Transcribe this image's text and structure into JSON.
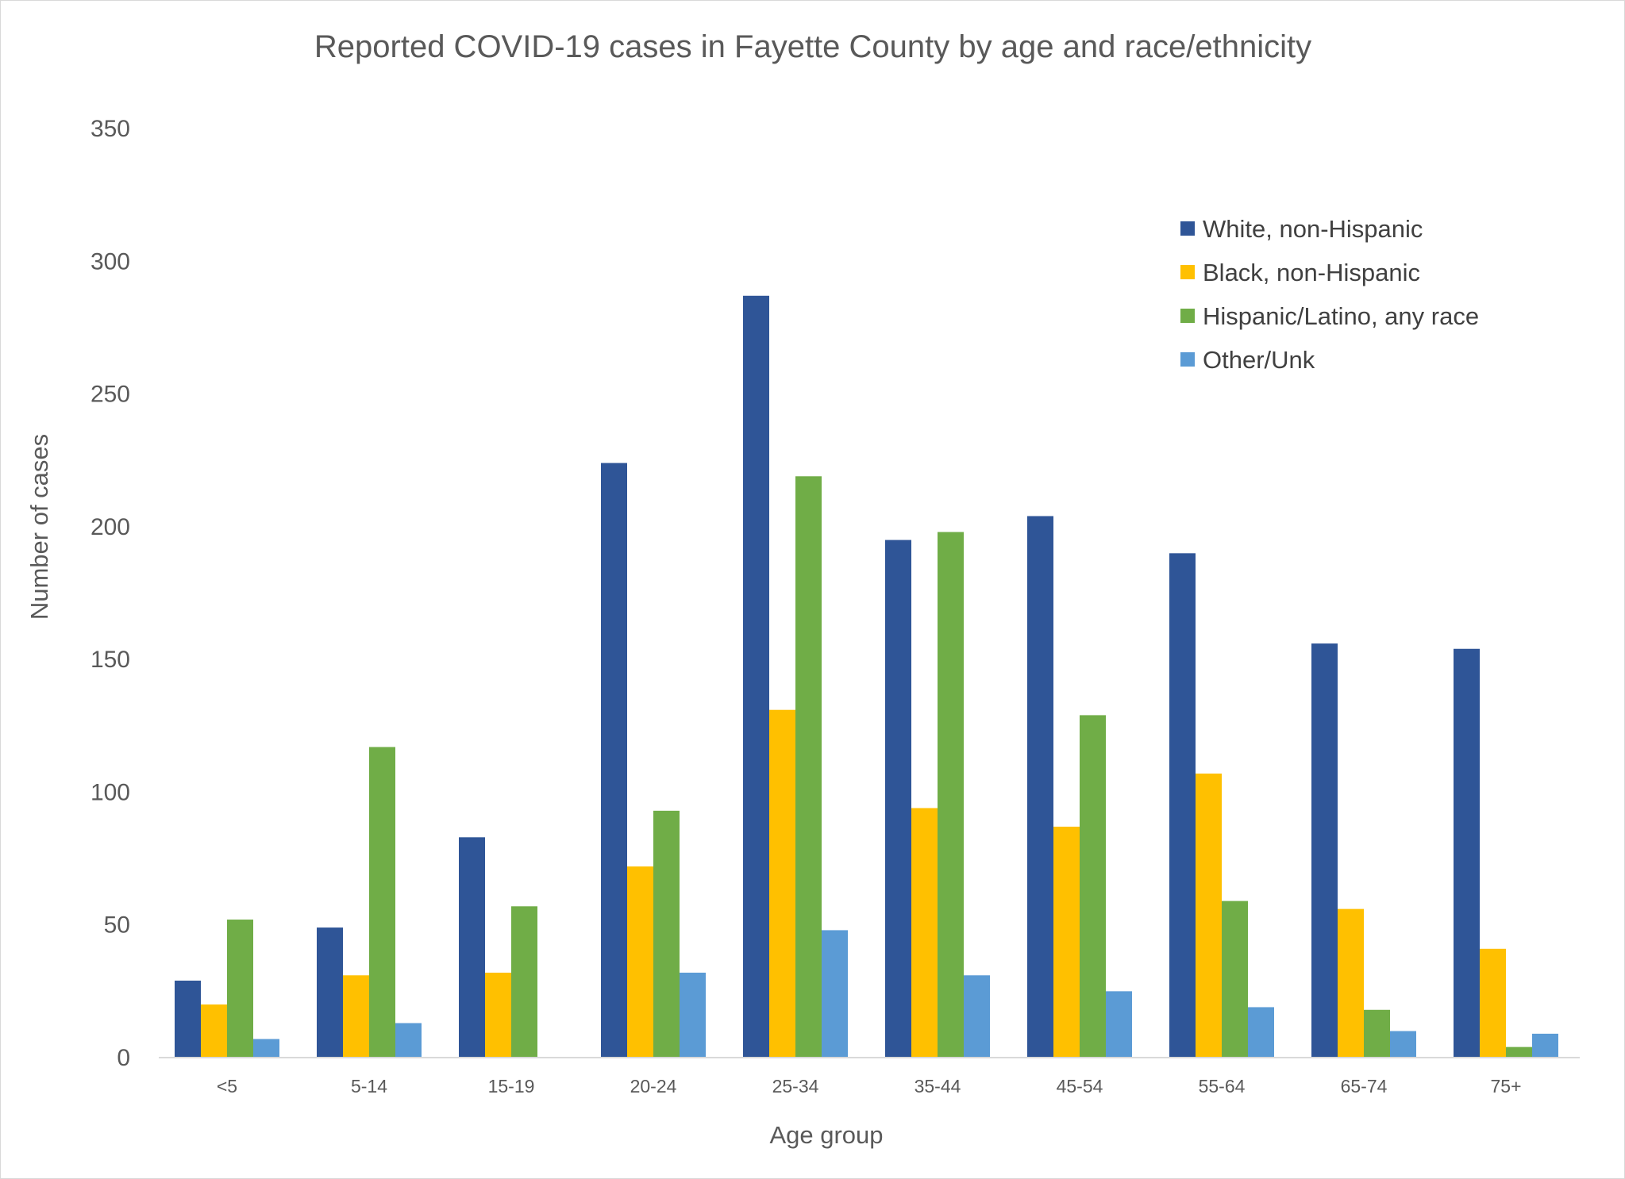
{
  "chart_data": {
    "type": "bar",
    "title": "Reported COVID-19 cases in Fayette County by age and race/ethnicity",
    "xlabel": "Age group",
    "ylabel": "Number of cases",
    "ylim": [
      0,
      350
    ],
    "yticks": [
      0,
      50,
      100,
      150,
      200,
      250,
      300,
      350
    ],
    "grid": false,
    "legend_position": "top-right",
    "categories": [
      "<5",
      "5-14",
      "15-19",
      "20-24",
      "25-34",
      "35-44",
      "45-54",
      "55-64",
      "65-74",
      "75+"
    ],
    "series": [
      {
        "name": "White, non-Hispanic",
        "color": "#2F5597",
        "values": [
          29,
          49,
          83,
          224,
          287,
          195,
          204,
          190,
          156,
          154
        ]
      },
      {
        "name": "Black, non-Hispanic",
        "color": "#FFC000",
        "values": [
          20,
          31,
          32,
          72,
          131,
          94,
          87,
          107,
          56,
          41
        ]
      },
      {
        "name": "Hispanic/Latino, any race",
        "color": "#70AD47",
        "values": [
          52,
          117,
          57,
          93,
          219,
          198,
          129,
          59,
          18,
          4
        ]
      },
      {
        "name": "Other/Unk",
        "color": "#5B9BD5",
        "values": [
          7,
          13,
          0,
          32,
          48,
          31,
          25,
          19,
          10,
          9
        ]
      }
    ]
  }
}
